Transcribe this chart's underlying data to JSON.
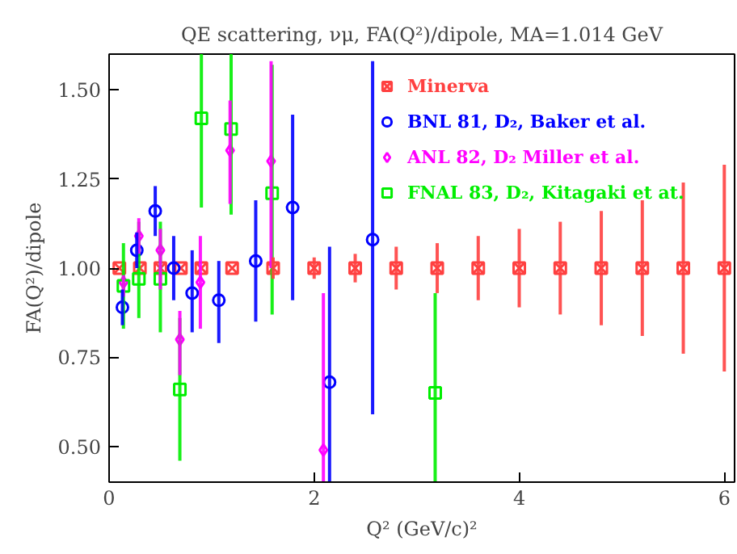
{
  "chart_data": {
    "type": "scatter",
    "title": "QE scattering, νμ, FA(Q²)/dipole, MA=1.014 GeV",
    "xlabel": "Q² (GeV/c)²",
    "ylabel": "FA(Q²)/dipole",
    "xlim": [
      0,
      6.1
    ],
    "ylim": [
      0.4,
      1.6
    ],
    "xticks": [
      0,
      2,
      4,
      6
    ],
    "yticks": [
      {
        "value": 0.5,
        "label": "0.50"
      },
      {
        "value": 0.75,
        "label": "0.75"
      },
      {
        "value": 1.0,
        "label": "1.00"
      },
      {
        "value": 1.25,
        "label": "1.25"
      },
      {
        "value": 1.5,
        "label": "1.50"
      }
    ],
    "grid": false,
    "legend": "top right",
    "series": [
      {
        "name": "Minerva",
        "color": "#ff4040",
        "marker": "cross",
        "x": [
          0.1,
          0.3,
          0.5,
          0.7,
          0.9,
          1.2,
          1.6,
          2.0,
          2.4,
          2.8,
          3.2,
          3.6,
          4.0,
          4.4,
          4.8,
          5.2,
          5.6,
          6.0
        ],
        "values": [
          1,
          1,
          1,
          1,
          1,
          1,
          1,
          1,
          1,
          1,
          1,
          1,
          1,
          1,
          1,
          1,
          1,
          1
        ],
        "errors": [
          null,
          null,
          null,
          null,
          null,
          null,
          0.03,
          0.03,
          0.04,
          0.06,
          0.07,
          0.09,
          0.11,
          0.13,
          0.16,
          0.19,
          0.24,
          0.29
        ]
      },
      {
        "name": "BNL 81, D₂, Baker et al.",
        "color": "#0000ff",
        "marker": "circle",
        "x": [
          0.13,
          0.27,
          0.45,
          0.63,
          0.81,
          1.07,
          1.43,
          1.79,
          2.15,
          2.57
        ],
        "values": [
          0.89,
          1.05,
          1.16,
          1.0,
          0.93,
          0.91,
          1.02,
          1.17,
          0.68,
          1.08
        ],
        "errors": [
          [
            0.84,
            0.94
          ],
          [
            1.0,
            1.1
          ],
          [
            1.09,
            1.23
          ],
          [
            0.91,
            1.09
          ],
          [
            0.82,
            1.05
          ],
          [
            0.79,
            1.02
          ],
          [
            0.85,
            1.19
          ],
          [
            0.91,
            1.43
          ],
          [
            0.4,
            1.06
          ],
          [
            0.59,
            1.58
          ]
        ]
      },
      {
        "name": "ANL 82, D₂ Miller et al.",
        "color": "#ff00ff",
        "marker": "diamond",
        "x": [
          0.14,
          0.29,
          0.5,
          0.69,
          0.89,
          1.18,
          1.58,
          2.09
        ],
        "values": [
          0.96,
          1.09,
          1.05,
          0.8,
          0.96,
          1.33,
          1.3,
          0.49
        ],
        "errors": [
          [
            0.92,
            0.98
          ],
          [
            1.04,
            1.14
          ],
          [
            0.94,
            1.11
          ],
          [
            0.7,
            0.88
          ],
          [
            0.83,
            1.09
          ],
          [
            1.18,
            1.47
          ],
          [
            1.0,
            1.58
          ],
          [
            0.4,
            0.93
          ]
        ]
      },
      {
        "name": "FNAL 83, D₂, Kitagaki et at.",
        "color": "#00ee00",
        "marker": "square",
        "x": [
          0.14,
          0.29,
          0.5,
          0.69,
          0.9,
          1.19,
          1.59,
          3.18
        ],
        "values": [
          0.95,
          0.97,
          0.97,
          0.66,
          1.42,
          1.39,
          1.21,
          0.65
        ],
        "errors": [
          [
            0.83,
            1.07
          ],
          [
            0.86,
            1.13
          ],
          [
            0.82,
            1.13
          ],
          [
            0.46,
            0.86
          ],
          [
            1.17,
            1.6
          ],
          [
            1.15,
            1.6
          ],
          [
            0.87,
            1.57
          ],
          [
            0.4,
            0.93
          ]
        ]
      }
    ]
  }
}
